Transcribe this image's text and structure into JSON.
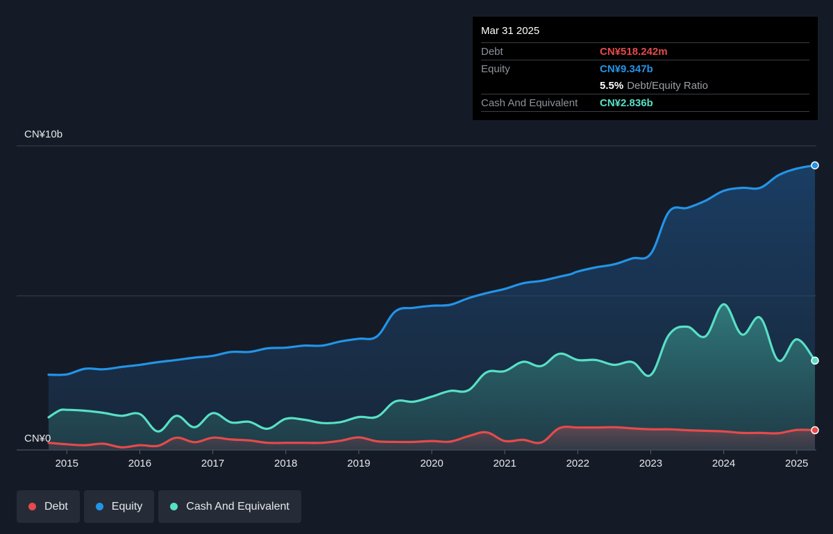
{
  "tooltip": {
    "date": "Mar 31 2025",
    "rows": {
      "debt": {
        "label": "Debt",
        "value": "CN¥518.242m"
      },
      "equity": {
        "label": "Equity",
        "value": "CN¥9.347b"
      },
      "ratio": {
        "value": "5.5%",
        "label": "Debt/Equity Ratio"
      },
      "cash": {
        "label": "Cash And Equivalent",
        "value": "CN¥2.836b"
      }
    }
  },
  "legend": {
    "debt": "Debt",
    "equity": "Equity",
    "cash": "Cash And Equivalent"
  },
  "colors": {
    "debt": "#e64a4a",
    "equity": "#2394e8",
    "cash": "#58e0c6",
    "background": "#151b26"
  },
  "chart_data": {
    "type": "area",
    "title": "",
    "xlabel": "",
    "ylabel": "",
    "y_tick_labels": [
      {
        "value": 10,
        "label": "CN¥10b"
      },
      {
        "value": 0,
        "label": "CN¥0"
      }
    ],
    "ylim": [
      -0.2,
      10
    ],
    "x_ticks": [
      2015,
      2016,
      2017,
      2018,
      2019,
      2020,
      2021,
      2022,
      2023,
      2024,
      2025
    ],
    "xlim": [
      2014.72,
      2025.25
    ],
    "grid": true,
    "legend_position": "bottom-left",
    "series": [
      {
        "name": "Equity",
        "key": "equity",
        "points": [
          [
            2014.75,
            2.37
          ],
          [
            2015.0,
            2.38
          ],
          [
            2015.25,
            2.57
          ],
          [
            2015.5,
            2.55
          ],
          [
            2015.75,
            2.63
          ],
          [
            2016.0,
            2.7
          ],
          [
            2016.25,
            2.79
          ],
          [
            2016.5,
            2.86
          ],
          [
            2016.75,
            2.94
          ],
          [
            2017.0,
            3.0
          ],
          [
            2017.25,
            3.13
          ],
          [
            2017.5,
            3.13
          ],
          [
            2017.75,
            3.25
          ],
          [
            2018.0,
            3.27
          ],
          [
            2018.25,
            3.34
          ],
          [
            2018.5,
            3.34
          ],
          [
            2018.75,
            3.48
          ],
          [
            2019.0,
            3.57
          ],
          [
            2019.25,
            3.65
          ],
          [
            2019.5,
            4.48
          ],
          [
            2019.75,
            4.6
          ],
          [
            2020.0,
            4.67
          ],
          [
            2020.25,
            4.7
          ],
          [
            2020.5,
            4.92
          ],
          [
            2020.75,
            5.09
          ],
          [
            2021.0,
            5.23
          ],
          [
            2021.25,
            5.42
          ],
          [
            2021.5,
            5.5
          ],
          [
            2021.75,
            5.64
          ],
          [
            2021.9,
            5.72
          ],
          [
            2022.0,
            5.81
          ],
          [
            2022.25,
            5.95
          ],
          [
            2022.5,
            6.05
          ],
          [
            2022.75,
            6.25
          ],
          [
            2023.0,
            6.4
          ],
          [
            2023.25,
            7.8
          ],
          [
            2023.5,
            7.93
          ],
          [
            2023.75,
            8.17
          ],
          [
            2024.0,
            8.5
          ],
          [
            2024.25,
            8.6
          ],
          [
            2024.5,
            8.6
          ],
          [
            2024.75,
            9.02
          ],
          [
            2025.0,
            9.24
          ],
          [
            2025.25,
            9.35
          ]
        ]
      },
      {
        "name": "Cash And Equivalent",
        "key": "cash",
        "points": [
          [
            2014.75,
            0.95
          ],
          [
            2014.9,
            1.18
          ],
          [
            2015.0,
            1.2
          ],
          [
            2015.25,
            1.17
          ],
          [
            2015.5,
            1.1
          ],
          [
            2015.75,
            1.0
          ],
          [
            2016.0,
            1.06
          ],
          [
            2016.25,
            0.48
          ],
          [
            2016.5,
            1.0
          ],
          [
            2016.75,
            0.62
          ],
          [
            2017.0,
            1.09
          ],
          [
            2017.25,
            0.78
          ],
          [
            2017.5,
            0.8
          ],
          [
            2017.75,
            0.57
          ],
          [
            2018.0,
            0.9
          ],
          [
            2018.25,
            0.87
          ],
          [
            2018.5,
            0.76
          ],
          [
            2018.75,
            0.79
          ],
          [
            2019.0,
            0.96
          ],
          [
            2019.25,
            0.97
          ],
          [
            2019.5,
            1.48
          ],
          [
            2019.75,
            1.47
          ],
          [
            2020.0,
            1.64
          ],
          [
            2020.25,
            1.83
          ],
          [
            2020.5,
            1.85
          ],
          [
            2020.75,
            2.45
          ],
          [
            2021.0,
            2.49
          ],
          [
            2021.25,
            2.8
          ],
          [
            2021.5,
            2.66
          ],
          [
            2021.75,
            3.07
          ],
          [
            2022.0,
            2.86
          ],
          [
            2022.25,
            2.86
          ],
          [
            2022.5,
            2.7
          ],
          [
            2022.75,
            2.79
          ],
          [
            2023.0,
            2.36
          ],
          [
            2023.25,
            3.7
          ],
          [
            2023.5,
            3.97
          ],
          [
            2023.75,
            3.65
          ],
          [
            2024.0,
            4.72
          ],
          [
            2024.25,
            3.71
          ],
          [
            2024.5,
            4.27
          ],
          [
            2024.75,
            2.84
          ],
          [
            2025.0,
            3.55
          ],
          [
            2025.25,
            2.84
          ]
        ]
      },
      {
        "name": "Debt",
        "key": "debt",
        "points": [
          [
            2014.75,
            0.1
          ],
          [
            2015.0,
            0.05
          ],
          [
            2015.25,
            0.02
          ],
          [
            2015.5,
            0.07
          ],
          [
            2015.75,
            -0.05
          ],
          [
            2016.0,
            0.02
          ],
          [
            2016.25,
            0.0
          ],
          [
            2016.5,
            0.27
          ],
          [
            2016.75,
            0.12
          ],
          [
            2017.0,
            0.27
          ],
          [
            2017.25,
            0.21
          ],
          [
            2017.5,
            0.18
          ],
          [
            2017.75,
            0.1
          ],
          [
            2018.0,
            0.1
          ],
          [
            2018.25,
            0.1
          ],
          [
            2018.5,
            0.1
          ],
          [
            2018.75,
            0.17
          ],
          [
            2019.0,
            0.28
          ],
          [
            2019.25,
            0.15
          ],
          [
            2019.5,
            0.13
          ],
          [
            2019.75,
            0.13
          ],
          [
            2020.0,
            0.16
          ],
          [
            2020.25,
            0.14
          ],
          [
            2020.5,
            0.32
          ],
          [
            2020.75,
            0.45
          ],
          [
            2021.0,
            0.16
          ],
          [
            2021.25,
            0.2
          ],
          [
            2021.5,
            0.11
          ],
          [
            2021.75,
            0.59
          ],
          [
            2022.0,
            0.61
          ],
          [
            2022.25,
            0.61
          ],
          [
            2022.5,
            0.62
          ],
          [
            2022.75,
            0.58
          ],
          [
            2023.0,
            0.55
          ],
          [
            2023.25,
            0.55
          ],
          [
            2023.5,
            0.52
          ],
          [
            2023.75,
            0.5
          ],
          [
            2024.0,
            0.48
          ],
          [
            2024.25,
            0.43
          ],
          [
            2024.5,
            0.43
          ],
          [
            2024.75,
            0.42
          ],
          [
            2025.0,
            0.53
          ],
          [
            2025.25,
            0.52
          ]
        ]
      }
    ]
  }
}
